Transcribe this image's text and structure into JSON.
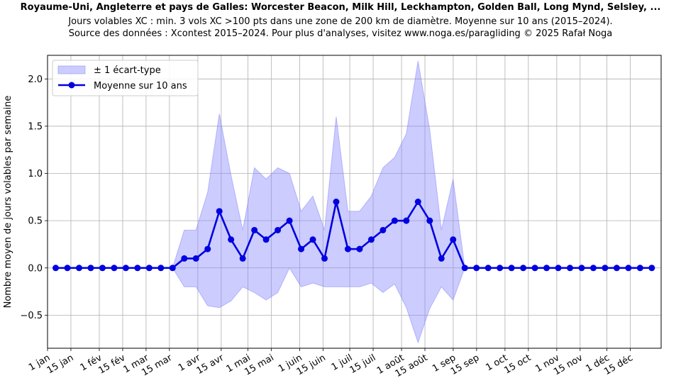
{
  "chart_data": {
    "type": "line",
    "title": "Royaume-Uni, Angleterre et pays de Galles: Worcester Beacon, Milk Hill, Leckhampton, Golden Ball, Long Mynd, Selsley, ...",
    "subtitle": [
      "Jours volables XC : min. 3 vols XC >100 pts dans une zone de 200 km de diamètre. Moyenne sur 10 ans (2015–2024).",
      "Source des données : Xcontest 2015–2024. Pour plus d'analyses, visitez www.noga.es/paragliding © 2025 Rafał Noga"
    ],
    "xlabel": "",
    "ylabel": "Nombre moyen de jours volables par semaine",
    "xlim": [
      0,
      52.5
    ],
    "ylim": [
      -0.85,
      2.25
    ],
    "yticks": [
      -0.5,
      0.0,
      0.5,
      1.0,
      1.5,
      2.0
    ],
    "ytick_labels": [
      "−0.5",
      "0.0",
      "0.5",
      "1.0",
      "1.5",
      "2.0"
    ],
    "xticks": [
      {
        "pos": 0,
        "label": "1 jan"
      },
      {
        "pos": 2,
        "label": "15 jan"
      },
      {
        "pos": 4.43,
        "label": "1 fév"
      },
      {
        "pos": 6.43,
        "label": "15 fév"
      },
      {
        "pos": 8.43,
        "label": "1 mar"
      },
      {
        "pos": 10.43,
        "label": "15 mar"
      },
      {
        "pos": 12.86,
        "label": "1 avr"
      },
      {
        "pos": 14.86,
        "label": "15 avr"
      },
      {
        "pos": 17.14,
        "label": "1 mai"
      },
      {
        "pos": 19.14,
        "label": "15 mai"
      },
      {
        "pos": 21.57,
        "label": "1 juin"
      },
      {
        "pos": 23.57,
        "label": "15 juin"
      },
      {
        "pos": 25.86,
        "label": "1 juil"
      },
      {
        "pos": 27.86,
        "label": "15 juil"
      },
      {
        "pos": 30.29,
        "label": "1 août"
      },
      {
        "pos": 32.29,
        "label": "15 août"
      },
      {
        "pos": 34.71,
        "label": "1 sep"
      },
      {
        "pos": 36.71,
        "label": "15 sep"
      },
      {
        "pos": 39.14,
        "label": "1 oct"
      },
      {
        "pos": 41.14,
        "label": "15 oct"
      },
      {
        "pos": 43.57,
        "label": "1 nov"
      },
      {
        "pos": 45.57,
        "label": "15 nov"
      },
      {
        "pos": 47.86,
        "label": "1 déc"
      },
      {
        "pos": 49.86,
        "label": "15 déc"
      }
    ],
    "grid": true,
    "legend_position": "top-left",
    "x": [
      0.7,
      1.7,
      2.7,
      3.7,
      4.7,
      5.7,
      6.7,
      7.7,
      8.7,
      9.7,
      10.7,
      11.7,
      12.7,
      13.7,
      14.7,
      15.7,
      16.7,
      17.7,
      18.7,
      19.7,
      20.7,
      21.7,
      22.7,
      23.7,
      24.7,
      25.7,
      26.7,
      27.7,
      28.7,
      29.7,
      30.7,
      31.7,
      32.7,
      33.7,
      34.7,
      35.7,
      36.7,
      37.7,
      38.7,
      39.7,
      40.7,
      41.7,
      42.7,
      43.7,
      44.7,
      45.7,
      46.7,
      47.7,
      48.7,
      49.7,
      50.7,
      51.7
    ],
    "series": [
      {
        "name": "Moyenne sur 10 ans",
        "color": "#0000e0",
        "values": [
          0,
          0,
          0,
          0,
          0,
          0,
          0,
          0,
          0,
          0,
          0,
          0.1,
          0.1,
          0.2,
          0.6,
          0.3,
          0.1,
          0.4,
          0.3,
          0.4,
          0.5,
          0.2,
          0.3,
          0.1,
          0.7,
          0.2,
          0.2,
          0.3,
          0.4,
          0.5,
          0.5,
          0.7,
          0.5,
          0.1,
          0.3,
          0,
          0,
          0,
          0,
          0,
          0,
          0,
          0,
          0,
          0,
          0,
          0,
          0,
          0,
          0,
          0,
          0
        ]
      },
      {
        "name": "± 1 écart-type",
        "color": "#8080ff",
        "upper": [
          0,
          0,
          0,
          0,
          0,
          0,
          0,
          0,
          0,
          0,
          0,
          0.4,
          0.4,
          0.8,
          1.63,
          0.98,
          0.4,
          1.06,
          0.94,
          1.06,
          1.0,
          0.6,
          0.76,
          0.4,
          1.6,
          0.6,
          0.6,
          0.76,
          1.06,
          1.17,
          1.42,
          2.19,
          1.46,
          0.4,
          0.94,
          0,
          0,
          0,
          0,
          0,
          0,
          0,
          0,
          0,
          0,
          0,
          0,
          0,
          0,
          0,
          0,
          0
        ],
        "lower": [
          0,
          0,
          0,
          0,
          0,
          0,
          0,
          0,
          0,
          0,
          0,
          -0.2,
          -0.2,
          -0.4,
          -0.42,
          -0.35,
          -0.2,
          -0.26,
          -0.34,
          -0.26,
          0,
          -0.2,
          -0.16,
          -0.2,
          -0.2,
          -0.2,
          -0.2,
          -0.16,
          -0.26,
          -0.17,
          -0.42,
          -0.79,
          -0.43,
          -0.2,
          -0.34,
          0,
          0,
          0,
          0,
          0,
          0,
          0,
          0,
          0,
          0,
          0,
          0,
          0,
          0,
          0,
          0,
          0
        ]
      }
    ]
  }
}
